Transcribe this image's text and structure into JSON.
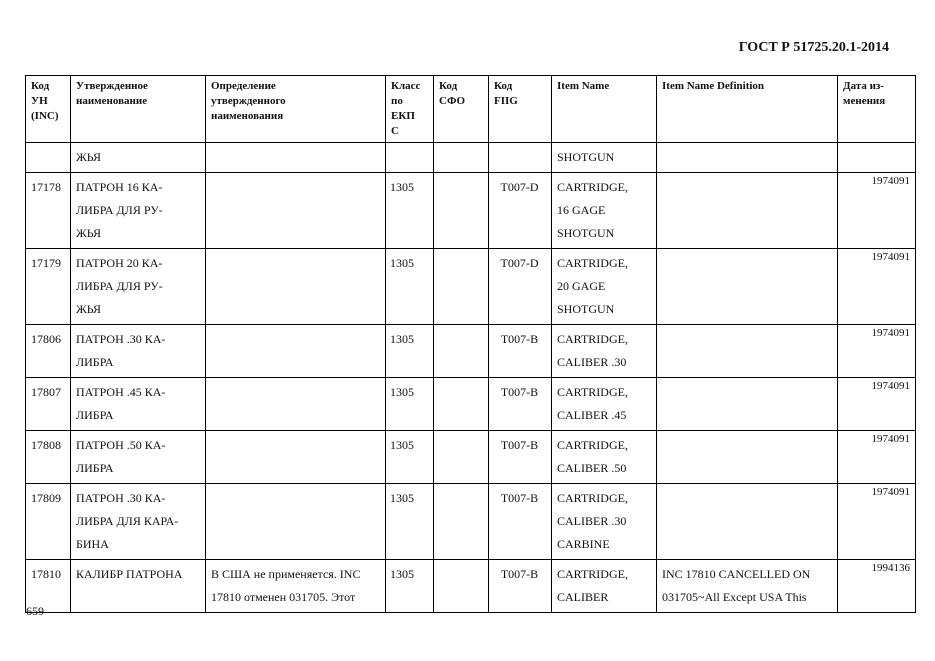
{
  "header": {
    "standard": "ГОСТ Р 51725.20.1-2014"
  },
  "table": {
    "columns": [
      "Код\nУН\n(INC)",
      "Утвержденное\nнаименование",
      "Определение\nутвержденного\nнаименования",
      "Класс\nпо\nЕКП\nС",
      "Код\nСФО",
      "Код\nFIIG",
      "Item Name",
      "Item Name Definition",
      "Дата из-\nменения"
    ],
    "rows": [
      [
        "",
        "ЖЬЯ",
        "",
        "",
        "",
        "",
        "SHOTGUN",
        "",
        ""
      ],
      [
        "17178",
        "ПАТРОН 16 КА-\nЛИБРА ДЛЯ РУ-\nЖЬЯ",
        "",
        "1305",
        "",
        "T007-D",
        "CARTRIDGE,\n16 GAGE\nSHOTGUN",
        "",
        "1974091"
      ],
      [
        "17179",
        "ПАТРОН 20 КА-\nЛИБРА ДЛЯ РУ-\nЖЬЯ",
        "",
        "1305",
        "",
        "T007-D",
        "CARTRIDGE,\n20 GAGE\nSHOTGUN",
        "",
        "1974091"
      ],
      [
        "17806",
        "ПАТРОН .30 КА-\nЛИБРА",
        "",
        "1305",
        "",
        "T007-B",
        "CARTRIDGE,\nCALIBER .30",
        "",
        "1974091"
      ],
      [
        "17807",
        "ПАТРОН .45 КА-\nЛИБРА",
        "",
        "1305",
        "",
        "T007-B",
        "CARTRIDGE,\nCALIBER .45",
        "",
        "1974091"
      ],
      [
        "17808",
        "ПАТРОН .50 КА-\nЛИБРА",
        "",
        "1305",
        "",
        "T007-B",
        "CARTRIDGE,\nCALIBER .50",
        "",
        "1974091"
      ],
      [
        "17809",
        "ПАТРОН .30 КА-\nЛИБРА ДЛЯ КАРА-\nБИНА",
        "",
        "1305",
        "",
        "T007-B",
        "CARTRIDGE,\nCALIBER .30\nCARBINE",
        "",
        "1974091"
      ],
      [
        "17810",
        "КАЛИБР ПАТРОНА",
        "В США не применяется. INC\n17810 отменен 031705. Этот",
        "1305",
        "",
        "T007-B",
        "CARTRIDGE,\nCALIBER",
        "INC 17810 CANCELLED ON\n031705~All Except USA This",
        "1994136"
      ]
    ]
  },
  "footer": {
    "page_number": "659"
  }
}
